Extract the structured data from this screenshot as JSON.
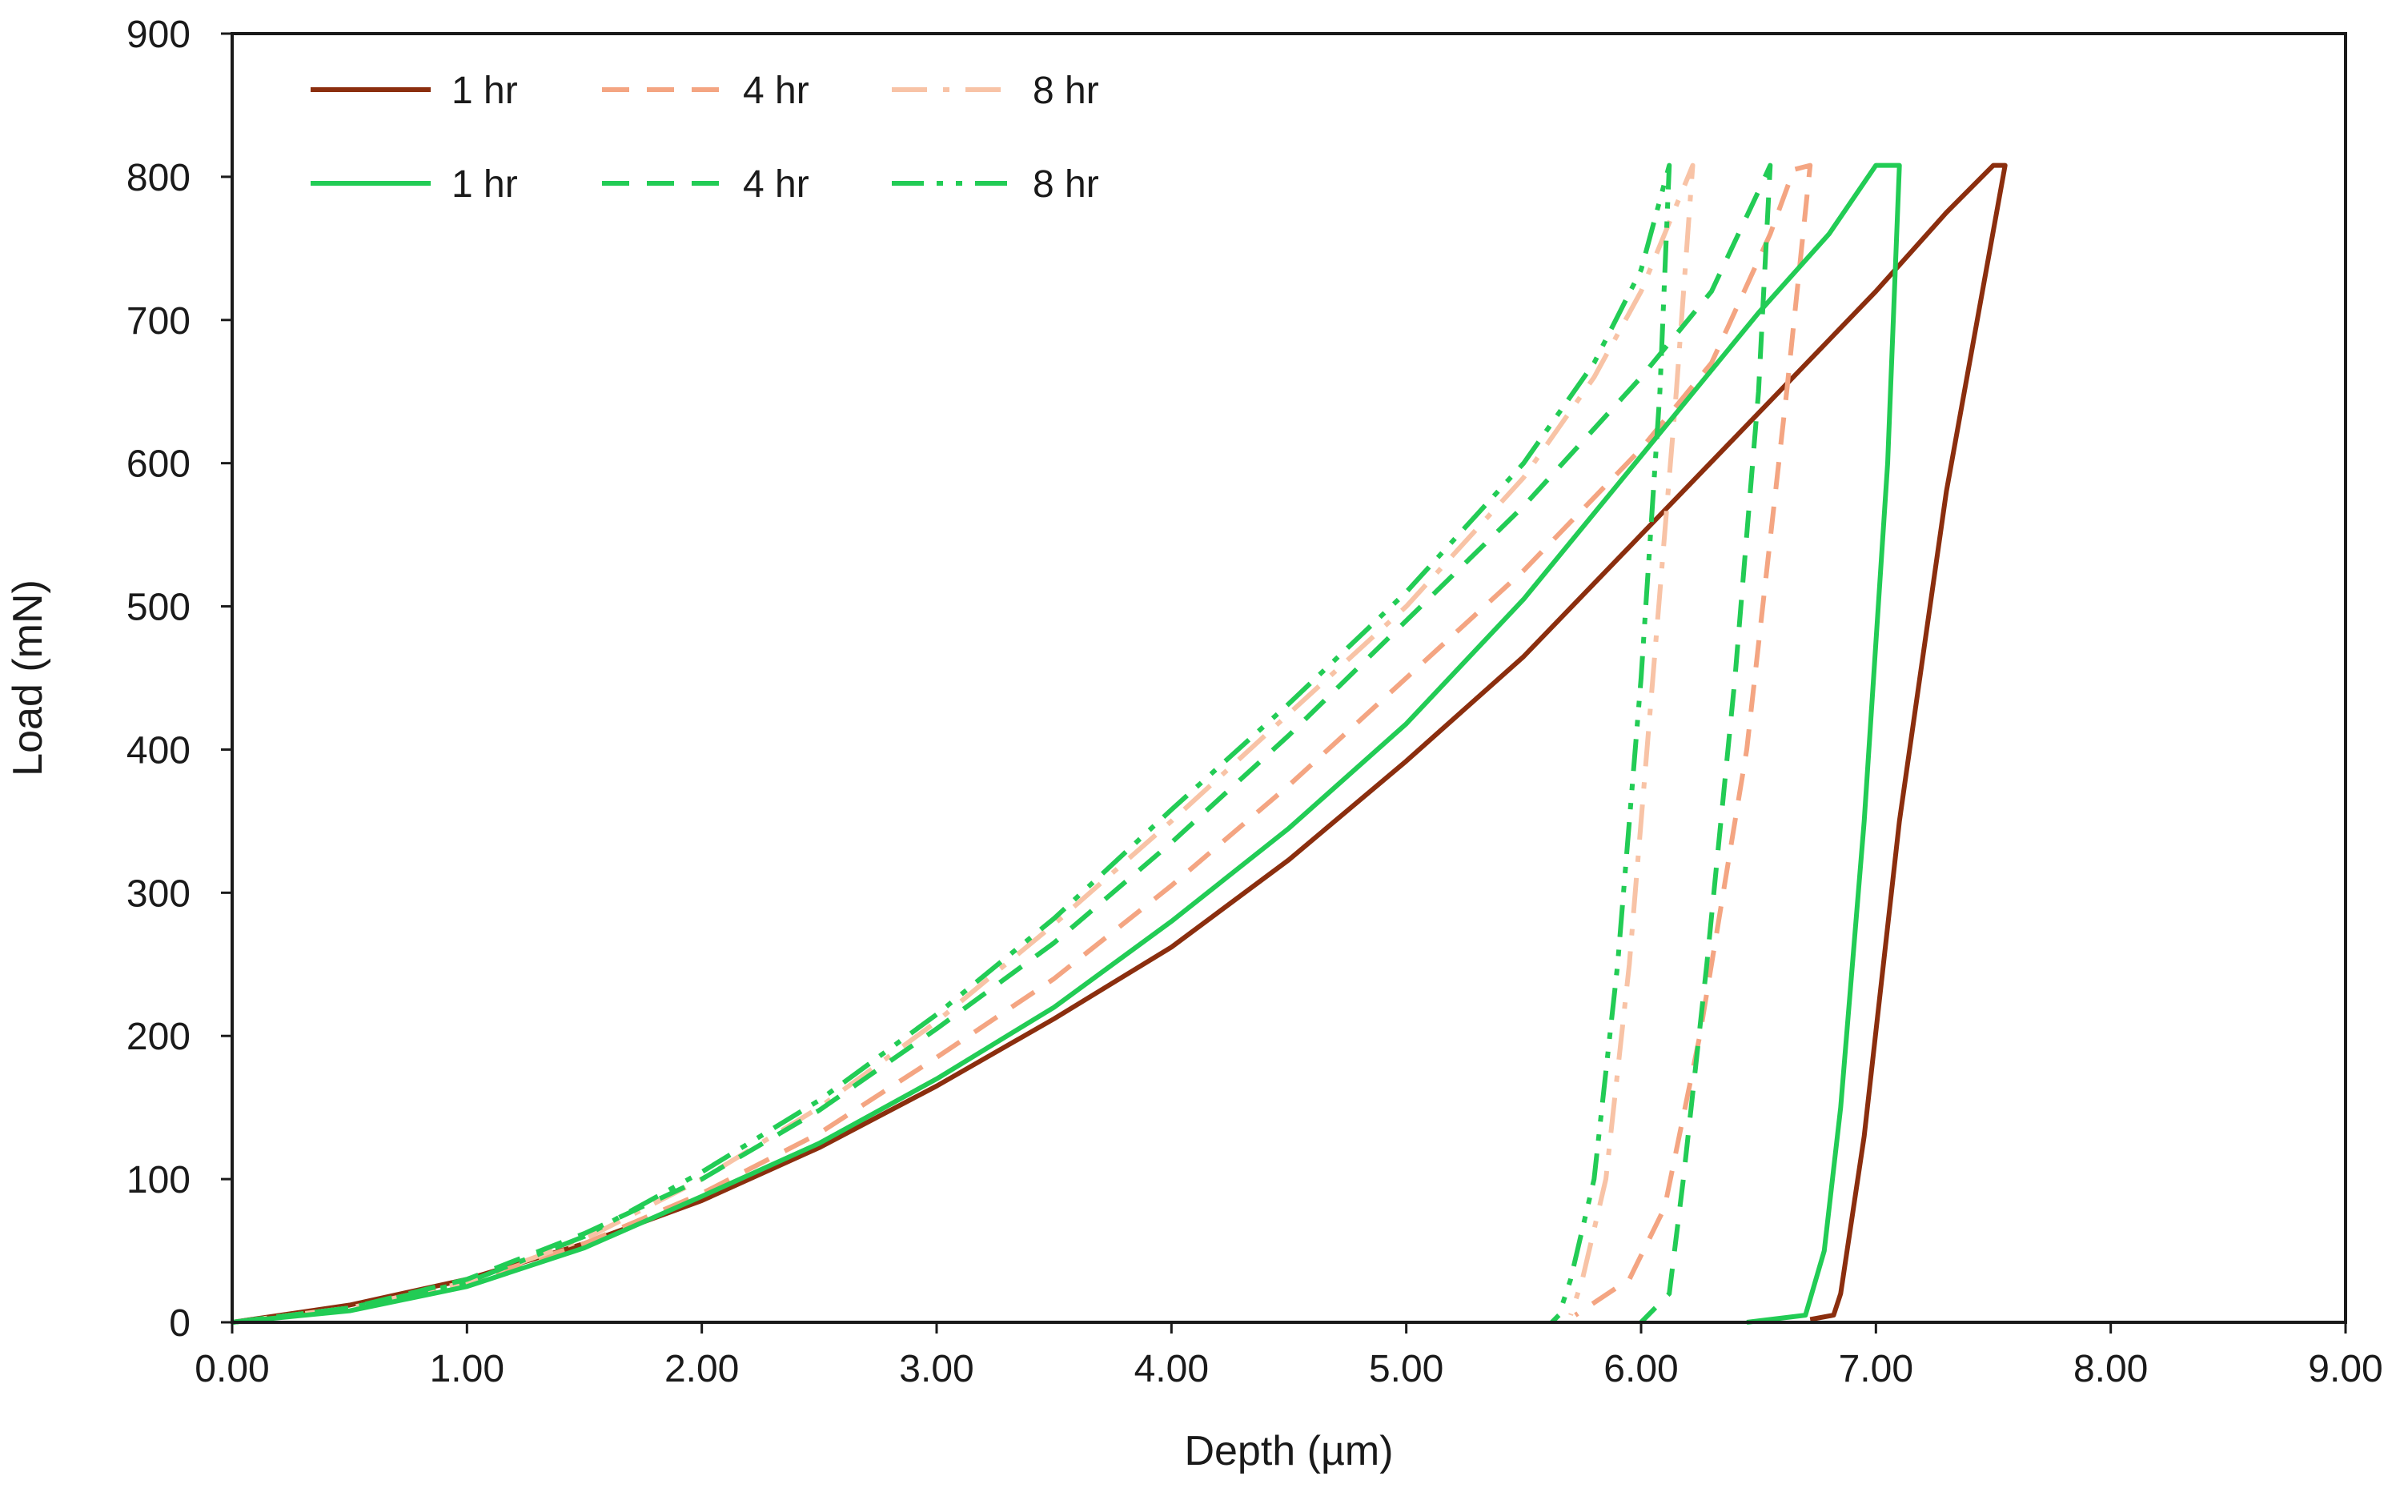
{
  "chart_data": {
    "type": "line",
    "title": "",
    "xlabel": "Depth (µm)",
    "ylabel": "Load (mN)",
    "xlim": [
      0,
      9
    ],
    "ylim": [
      0,
      900
    ],
    "x_ticks": [
      "0.00",
      "1.00",
      "2.00",
      "3.00",
      "4.00",
      "5.00",
      "6.00",
      "7.00",
      "8.00",
      "9.00"
    ],
    "y_ticks": [
      "0",
      "100",
      "200",
      "300",
      "400",
      "500",
      "600",
      "700",
      "800",
      "900"
    ],
    "grid": false,
    "legend_position": "top-left",
    "series": [
      {
        "name": "1 hr",
        "color": "#8B2E0E",
        "dash": "solid",
        "points": [
          [
            0,
            0
          ],
          [
            0.5,
            12
          ],
          [
            1,
            30
          ],
          [
            1.5,
            55
          ],
          [
            2,
            85
          ],
          [
            2.5,
            122
          ],
          [
            3,
            165
          ],
          [
            3.5,
            212
          ],
          [
            4,
            262
          ],
          [
            4.5,
            323
          ],
          [
            5,
            392
          ],
          [
            5.5,
            465
          ],
          [
            6,
            550
          ],
          [
            6.5,
            635
          ],
          [
            7,
            720
          ],
          [
            7.3,
            775
          ],
          [
            7.5,
            808
          ],
          [
            7.55,
            808
          ],
          [
            7.3,
            580
          ],
          [
            7.1,
            350
          ],
          [
            6.95,
            130
          ],
          [
            6.85,
            20
          ],
          [
            6.82,
            5
          ],
          [
            6.72,
            2
          ]
        ]
      },
      {
        "name": "4 hr",
        "color": "#F4A582",
        "dash": "dash",
        "points": [
          [
            0,
            0
          ],
          [
            0.5,
            10
          ],
          [
            1,
            28
          ],
          [
            1.5,
            55
          ],
          [
            2,
            90
          ],
          [
            2.5,
            132
          ],
          [
            3,
            185
          ],
          [
            3.5,
            240
          ],
          [
            4,
            305
          ],
          [
            4.5,
            375
          ],
          [
            5,
            450
          ],
          [
            5.5,
            525
          ],
          [
            6,
            610
          ],
          [
            6.3,
            670
          ],
          [
            6.55,
            760
          ],
          [
            6.65,
            805
          ],
          [
            6.72,
            808
          ],
          [
            6.62,
            650
          ],
          [
            6.45,
            400
          ],
          [
            6.25,
            200
          ],
          [
            6.1,
            80
          ],
          [
            5.95,
            30
          ],
          [
            5.72,
            5
          ]
        ]
      },
      {
        "name": "8 hr",
        "color": "#F8C3A6",
        "dash": "dashdot",
        "points": [
          [
            0,
            0
          ],
          [
            0.5,
            10
          ],
          [
            1,
            28
          ],
          [
            1.5,
            58
          ],
          [
            2,
            100
          ],
          [
            2.5,
            150
          ],
          [
            3,
            210
          ],
          [
            3.5,
            278
          ],
          [
            4,
            350
          ],
          [
            4.5,
            425
          ],
          [
            5,
            500
          ],
          [
            5.5,
            590
          ],
          [
            5.8,
            660
          ],
          [
            6,
            720
          ],
          [
            6.15,
            780
          ],
          [
            6.22,
            808
          ],
          [
            6.15,
            650
          ],
          [
            6.05,
            450
          ],
          [
            5.95,
            250
          ],
          [
            5.85,
            100
          ],
          [
            5.75,
            30
          ],
          [
            5.7,
            5
          ]
        ]
      },
      {
        "name": "1 hr",
        "color": "#22CC55",
        "dash": "solid",
        "points": [
          [
            0,
            0
          ],
          [
            0.5,
            8
          ],
          [
            1,
            25
          ],
          [
            1.5,
            52
          ],
          [
            2,
            88
          ],
          [
            2.5,
            125
          ],
          [
            3,
            170
          ],
          [
            3.5,
            220
          ],
          [
            4,
            280
          ],
          [
            4.5,
            345
          ],
          [
            5,
            418
          ],
          [
            5.5,
            505
          ],
          [
            6,
            605
          ],
          [
            6.5,
            705
          ],
          [
            6.8,
            760
          ],
          [
            7.0,
            808
          ],
          [
            7.1,
            808
          ],
          [
            7.05,
            600
          ],
          [
            6.95,
            350
          ],
          [
            6.85,
            150
          ],
          [
            6.78,
            50
          ],
          [
            6.7,
            5
          ],
          [
            6.45,
            0
          ]
        ]
      },
      {
        "name": "4 hr",
        "color": "#22CC55",
        "dash": "dash",
        "points": [
          [
            0,
            0
          ],
          [
            0.5,
            10
          ],
          [
            1,
            30
          ],
          [
            1.5,
            62
          ],
          [
            2,
            100
          ],
          [
            2.5,
            148
          ],
          [
            3,
            205
          ],
          [
            3.5,
            265
          ],
          [
            4,
            335
          ],
          [
            4.5,
            410
          ],
          [
            5,
            490
          ],
          [
            5.5,
            570
          ],
          [
            6,
            660
          ],
          [
            6.3,
            720
          ],
          [
            6.5,
            790
          ],
          [
            6.55,
            808
          ],
          [
            6.5,
            650
          ],
          [
            6.4,
            450
          ],
          [
            6.28,
            250
          ],
          [
            6.18,
            100
          ],
          [
            6.12,
            20
          ],
          [
            6,
            0
          ]
        ]
      },
      {
        "name": "8 hr",
        "color": "#22CC55",
        "dash": "dashdotdot",
        "points": [
          [
            0,
            0
          ],
          [
            0.5,
            10
          ],
          [
            1,
            28
          ],
          [
            1.5,
            60
          ],
          [
            2,
            105
          ],
          [
            2.5,
            155
          ],
          [
            3,
            215
          ],
          [
            3.5,
            282
          ],
          [
            4,
            358
          ],
          [
            4.5,
            432
          ],
          [
            5,
            510
          ],
          [
            5.5,
            600
          ],
          [
            5.8,
            670
          ],
          [
            6,
            735
          ],
          [
            6.12,
            808
          ],
          [
            6.08,
            650
          ],
          [
            6.0,
            450
          ],
          [
            5.9,
            250
          ],
          [
            5.8,
            100
          ],
          [
            5.7,
            30
          ],
          [
            5.65,
            5
          ],
          [
            5.62,
            0
          ]
        ]
      }
    ]
  }
}
